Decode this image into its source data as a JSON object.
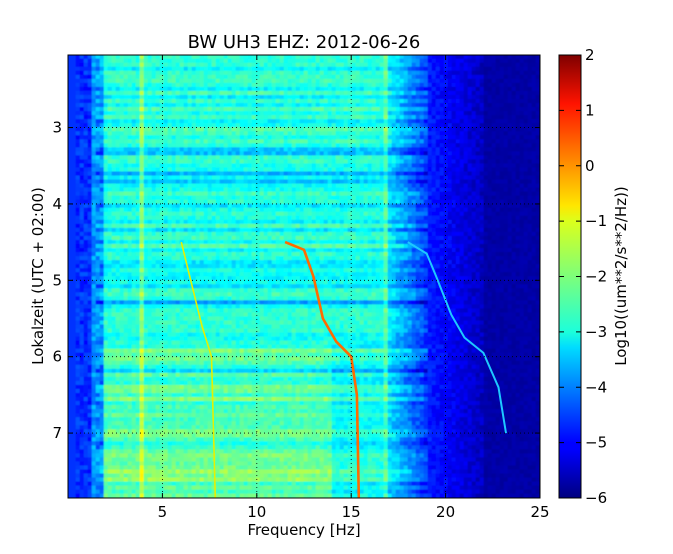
{
  "chart_data": {
    "type": "heatmap",
    "title": "BW UH3 EHZ: 2012-06-26",
    "xlabel": "Frequency [Hz]",
    "ylabel": "Lokalzeit (UTC + 02:00)",
    "xlim": [
      0,
      25
    ],
    "ylim": [
      2.05,
      7.85
    ],
    "y_inverted": true,
    "x_ticks": [
      5,
      10,
      15,
      20,
      25
    ],
    "x_tick_labels": [
      "5",
      "10",
      "15",
      "20",
      "25"
    ],
    "y_ticks": [
      3,
      4,
      5,
      6,
      7
    ],
    "y_tick_labels": [
      "3",
      "4",
      "5",
      "6",
      "7"
    ],
    "grid": true,
    "colormap": "jet",
    "colorbar": {
      "label": "Log10((um**2/s**2/Hz))",
      "range": [
        -6,
        2
      ],
      "ticks": [
        -6,
        -5,
        -4,
        -3,
        -2,
        -1,
        0,
        1,
        2
      ],
      "tick_labels": [
        "−6",
        "−5",
        "−4",
        "−3",
        "−2",
        "−1",
        "0",
        "1",
        "2"
      ]
    },
    "series": [
      {
        "kind": "dominant-tone",
        "points": [
          [
            11.5,
            4.5
          ],
          [
            12.5,
            4.6
          ],
          [
            13.0,
            4.95
          ],
          [
            13.5,
            5.5
          ],
          [
            14.2,
            5.8
          ],
          [
            15.0,
            6.0
          ],
          [
            15.3,
            6.5
          ],
          [
            15.4,
            7.85
          ]
        ]
      },
      {
        "kind": "harmonic-tone",
        "points": [
          [
            18.0,
            4.5
          ],
          [
            19.0,
            4.65
          ],
          [
            19.5,
            4.95
          ],
          [
            20.3,
            5.45
          ],
          [
            21.0,
            5.75
          ],
          [
            22.0,
            5.95
          ],
          [
            22.8,
            6.4
          ],
          [
            23.2,
            7.0
          ]
        ]
      },
      {
        "kind": "sub-tone",
        "points": [
          [
            6.0,
            4.5
          ],
          [
            6.5,
            5.0
          ],
          [
            7.1,
            5.6
          ],
          [
            7.6,
            6.0
          ],
          [
            7.8,
            7.85
          ]
        ]
      }
    ]
  }
}
